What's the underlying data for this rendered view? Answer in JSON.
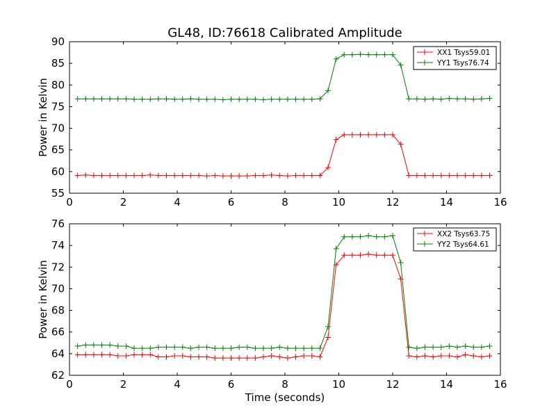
{
  "figure": {
    "title": "GL48, ID:76618 Calibrated Amplitude"
  },
  "chart_data": [
    {
      "type": "line",
      "title": "GL48, ID:76618 Calibrated Amplitude",
      "xlabel": "",
      "ylabel": "Power in Kelvin",
      "xlim": [
        0,
        16
      ],
      "ylim": [
        55,
        90
      ],
      "xticks": [
        "0",
        "2",
        "4",
        "6",
        "8",
        "10",
        "12",
        "14",
        "16"
      ],
      "yticks": [
        "55",
        "60",
        "65",
        "70",
        "75",
        "80",
        "85",
        "90"
      ],
      "legend_position": "top-right",
      "grid": false,
      "x": [
        0.3,
        0.6,
        0.9,
        1.2,
        1.5,
        1.8,
        2.1,
        2.4,
        2.7,
        3.0,
        3.3,
        3.6,
        3.9,
        4.2,
        4.5,
        4.8,
        5.1,
        5.4,
        5.7,
        6.0,
        6.3,
        6.6,
        6.9,
        7.2,
        7.5,
        7.8,
        8.1,
        8.4,
        8.7,
        9.0,
        9.3,
        9.6,
        9.9,
        10.2,
        10.5,
        10.8,
        11.1,
        11.4,
        11.7,
        12.0,
        12.3,
        12.6,
        12.9,
        13.2,
        13.5,
        13.8,
        14.1,
        14.4,
        14.7,
        15.0,
        15.3,
        15.6
      ],
      "series": [
        {
          "name": "XX1 Tsys59.01",
          "color": "#ff0000",
          "values": [
            59.1,
            59.2,
            59.1,
            59.1,
            59.1,
            59.1,
            59.1,
            59.1,
            59.1,
            59.2,
            59.1,
            59.1,
            59.1,
            59.1,
            59.1,
            59.1,
            59.0,
            59.1,
            59.0,
            59.0,
            59.0,
            59.0,
            59.1,
            59.1,
            59.2,
            59.1,
            59.0,
            59.1,
            59.1,
            59.1,
            59.1,
            60.9,
            67.4,
            68.5,
            68.5,
            68.5,
            68.5,
            68.5,
            68.5,
            68.5,
            66.3,
            59.1,
            59.1,
            59.1,
            59.1,
            59.1,
            59.1,
            59.1,
            59.1,
            59.1,
            59.1,
            59.1
          ]
        },
        {
          "name": "YY1 Tsys76.74",
          "color": "#008000",
          "values": [
            76.8,
            76.8,
            76.8,
            76.8,
            76.8,
            76.8,
            76.8,
            76.7,
            76.7,
            76.7,
            76.8,
            76.8,
            76.7,
            76.7,
            76.8,
            76.7,
            76.7,
            76.7,
            76.6,
            76.7,
            76.7,
            76.7,
            76.7,
            76.6,
            76.7,
            76.7,
            76.7,
            76.7,
            76.7,
            76.7,
            76.8,
            78.7,
            86.0,
            87.0,
            87.0,
            87.1,
            87.0,
            87.0,
            87.0,
            87.0,
            84.6,
            76.8,
            76.8,
            76.7,
            76.8,
            76.7,
            76.9,
            76.8,
            76.8,
            76.7,
            76.8,
            76.9
          ]
        }
      ]
    },
    {
      "type": "line",
      "title": "",
      "xlabel": "Time (seconds)",
      "ylabel": "Power in Kelvin",
      "xlim": [
        0,
        16
      ],
      "ylim": [
        62,
        76
      ],
      "xticks": [
        "0",
        "2",
        "4",
        "6",
        "8",
        "10",
        "12",
        "14",
        "16"
      ],
      "yticks": [
        "62",
        "64",
        "66",
        "68",
        "70",
        "72",
        "74",
        "76"
      ],
      "legend_position": "top-right",
      "grid": false,
      "x": [
        0.3,
        0.6,
        0.9,
        1.2,
        1.5,
        1.8,
        2.1,
        2.4,
        2.7,
        3.0,
        3.3,
        3.6,
        3.9,
        4.2,
        4.5,
        4.8,
        5.1,
        5.4,
        5.7,
        6.0,
        6.3,
        6.6,
        6.9,
        7.2,
        7.5,
        7.8,
        8.1,
        8.4,
        8.7,
        9.0,
        9.3,
        9.6,
        9.9,
        10.2,
        10.5,
        10.8,
        11.1,
        11.4,
        11.7,
        12.0,
        12.3,
        12.6,
        12.9,
        13.2,
        13.5,
        13.8,
        14.1,
        14.4,
        14.7,
        15.0,
        15.3,
        15.6
      ],
      "series": [
        {
          "name": "XX2 Tsys63.75",
          "color": "#ff0000",
          "values": [
            63.9,
            63.9,
            63.9,
            63.9,
            63.9,
            63.8,
            63.8,
            63.9,
            63.9,
            63.9,
            63.7,
            63.7,
            63.8,
            63.8,
            63.7,
            63.7,
            63.7,
            63.6,
            63.6,
            63.6,
            63.6,
            63.6,
            63.6,
            63.7,
            63.8,
            63.7,
            63.6,
            63.7,
            63.8,
            63.8,
            63.7,
            65.5,
            72.2,
            73.1,
            73.1,
            73.1,
            73.2,
            73.1,
            73.1,
            73.1,
            70.9,
            63.8,
            63.7,
            63.8,
            63.7,
            63.8,
            63.8,
            63.7,
            63.9,
            63.8,
            63.7,
            63.8
          ]
        },
        {
          "name": "YY2 Tsys64.61",
          "color": "#008000",
          "values": [
            64.7,
            64.8,
            64.8,
            64.8,
            64.8,
            64.7,
            64.7,
            64.5,
            64.5,
            64.5,
            64.6,
            64.6,
            64.6,
            64.6,
            64.5,
            64.6,
            64.6,
            64.5,
            64.5,
            64.5,
            64.6,
            64.6,
            64.5,
            64.5,
            64.5,
            64.6,
            64.5,
            64.5,
            64.5,
            64.5,
            64.5,
            66.5,
            73.7,
            74.8,
            74.8,
            74.8,
            74.9,
            74.8,
            74.8,
            74.9,
            72.4,
            64.6,
            64.5,
            64.6,
            64.6,
            64.6,
            64.7,
            64.6,
            64.7,
            64.6,
            64.6,
            64.7
          ]
        }
      ]
    }
  ]
}
